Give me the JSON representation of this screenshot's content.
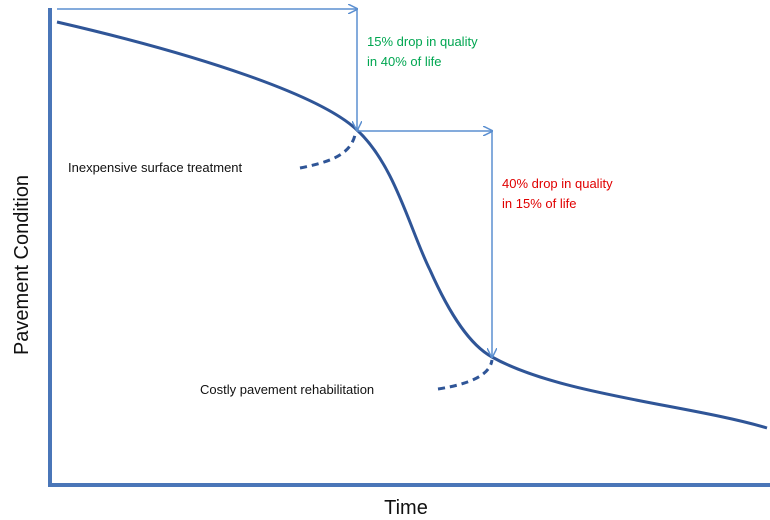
{
  "axes": {
    "ylabel": "Pavement Condition",
    "xlabel": "Time"
  },
  "annotations": {
    "green_note": [
      "15% drop in quality",
      "in 40% of life"
    ],
    "red_note": [
      "40% drop in quality",
      "in 15% of life"
    ],
    "treatment_label": "Inexpensive surface treatment",
    "rehab_label": "Costly pavement rehabilitation"
  },
  "colors": {
    "curve": "#2f5597",
    "axis": "#4a76b8",
    "arrow": "#5b8fd0",
    "green_text": "#00a651",
    "red_text": "#e00000"
  }
}
